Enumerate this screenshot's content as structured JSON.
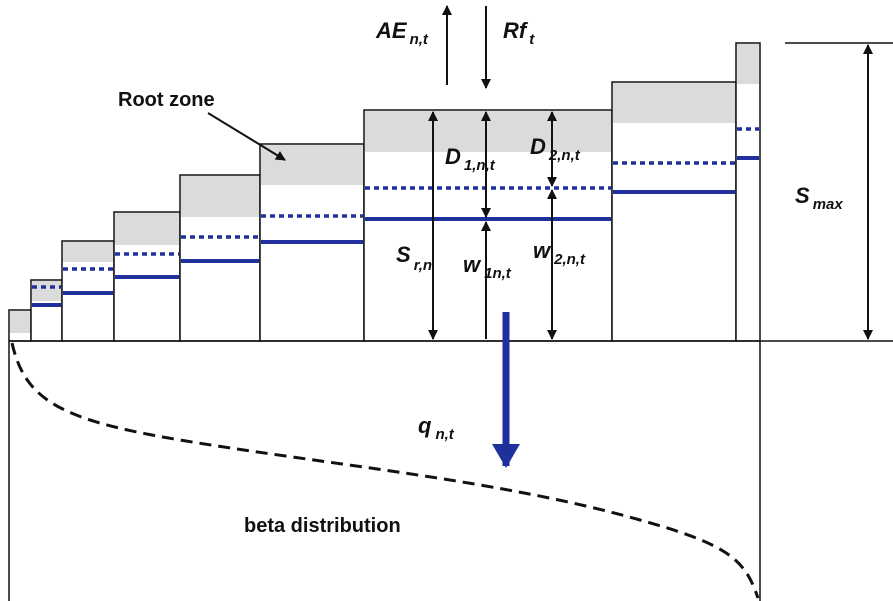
{
  "labels": {
    "ae": {
      "main": "AE",
      "sub": "n,t"
    },
    "rf": {
      "main": "Rf",
      "sub": "t"
    },
    "root_zone": "Root zone",
    "d1": {
      "main": "D",
      "sub": "1,n,t"
    },
    "d2": {
      "main": "D",
      "sub": "2,n,t"
    },
    "sr": {
      "main": "S",
      "sub": "r,n"
    },
    "w1": {
      "main": "w",
      "sub": "1n,t"
    },
    "w2": {
      "main": "w",
      "sub": "2,n,t"
    },
    "smax": {
      "main": "S",
      "sub": "max"
    },
    "q": {
      "main": "q",
      "sub": "n,t"
    },
    "beta": "beta distribution"
  }
}
